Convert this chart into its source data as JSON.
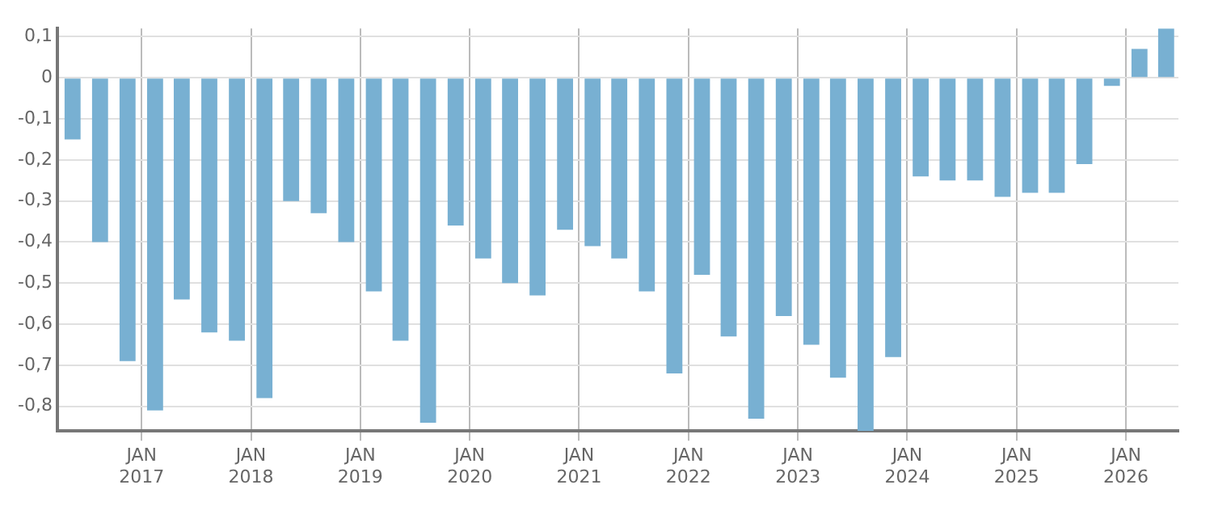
{
  "chart_data": {
    "type": "bar",
    "color": "#78b0d2",
    "x": [
      "2016-05-15",
      "2016-08-15",
      "2016-11-15",
      "2017-02-15",
      "2017-05-15",
      "2017-08-15",
      "2017-11-15",
      "2018-02-15",
      "2018-05-15",
      "2018-08-15",
      "2018-11-15",
      "2019-02-15",
      "2019-05-15",
      "2019-08-15",
      "2019-11-15",
      "2020-02-15",
      "2020-05-15",
      "2020-08-15",
      "2020-11-15",
      "2021-02-15",
      "2021-05-15",
      "2021-08-15",
      "2021-11-15",
      "2022-02-15",
      "2022-05-15",
      "2022-08-15",
      "2022-11-15",
      "2023-02-15",
      "2023-05-15",
      "2023-08-15",
      "2023-11-15",
      "2024-02-15",
      "2024-05-15",
      "2024-08-15",
      "2024-11-15",
      "2025-02-15",
      "2025-05-15",
      "2025-08-15",
      "2025-11-15",
      "2026-02-15",
      "2026-05-15"
    ],
    "values": [
      -0.15,
      -0.4,
      -0.69,
      -0.81,
      -0.54,
      -0.62,
      -0.64,
      -0.78,
      -0.3,
      -0.33,
      -0.4,
      -0.52,
      -0.64,
      -0.84,
      -0.36,
      -0.44,
      -0.5,
      -0.53,
      -0.37,
      -0.41,
      -0.44,
      -0.52,
      -0.72,
      -0.48,
      -0.63,
      -0.83,
      -0.58,
      -0.65,
      -0.73,
      -0.86,
      -0.68,
      -0.24,
      -0.25,
      -0.25,
      -0.29,
      -0.28,
      -0.28,
      -0.21,
      -0.02,
      0.07,
      0.12
    ],
    "xlim": [
      "2016-03-25",
      "2026-06-25"
    ],
    "xticks": [
      {
        "value": "2017-01-01",
        "label": "JAN 2017"
      },
      {
        "value": "2018-01-01",
        "label": "JAN 2018"
      },
      {
        "value": "2019-01-01",
        "label": "JAN 2019"
      },
      {
        "value": "2020-01-01",
        "label": "JAN 2020"
      },
      {
        "value": "2021-01-01",
        "label": "JAN 2021"
      },
      {
        "value": "2022-01-01",
        "label": "JAN 2022"
      },
      {
        "value": "2023-01-01",
        "label": "JAN 2023"
      },
      {
        "value": "2024-01-01",
        "label": "JAN 2024"
      },
      {
        "value": "2025-01-01",
        "label": "JAN 2025"
      },
      {
        "value": "2026-01-01",
        "label": "JAN 2026"
      }
    ],
    "ylim": [
      -0.86,
      0.12
    ],
    "yticks": [
      {
        "value": 0.1,
        "label": "0,1"
      },
      {
        "value": 0,
        "label": "0"
      },
      {
        "value": -0.1,
        "label": "-0,1"
      },
      {
        "value": -0.2,
        "label": "-0,2"
      },
      {
        "value": -0.3,
        "label": "-0,3"
      },
      {
        "value": -0.4,
        "label": "-0,4"
      },
      {
        "value": -0.5,
        "label": "-0,5"
      },
      {
        "value": -0.6,
        "label": "-0,6"
      },
      {
        "value": -0.7,
        "label": "-0,7"
      },
      {
        "value": -0.8,
        "label": "-0,8"
      }
    ],
    "grid": true
  }
}
